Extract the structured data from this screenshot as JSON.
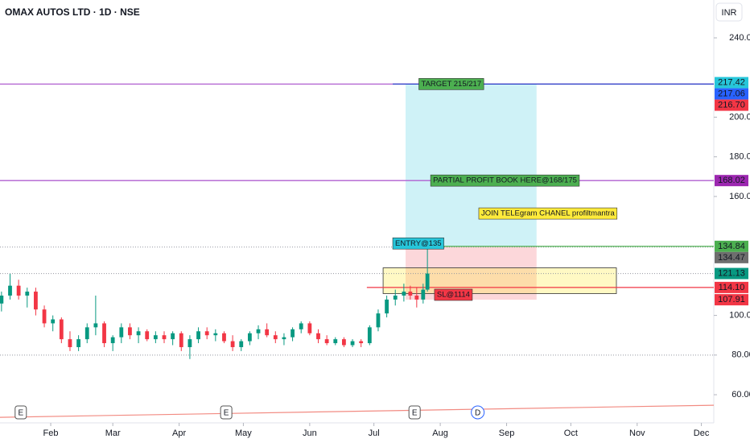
{
  "chart_data": {
    "type": "candlestick",
    "title": "OMAX AUTOS LTD · 1D · NSE",
    "currency": "INR",
    "up_color": "#089981",
    "down_color": "#f23645",
    "xlim": [
      8.3,
      341.8
    ],
    "ylim": [
      45.8,
      259.1
    ],
    "xticks": [
      {
        "value": 32,
        "label": "Feb"
      },
      {
        "value": 61,
        "label": "Mar"
      },
      {
        "value": 92,
        "label": "Apr"
      },
      {
        "value": 122,
        "label": "May"
      },
      {
        "value": 153,
        "label": "Jun"
      },
      {
        "value": 183,
        "label": "Jul"
      },
      {
        "value": 214,
        "label": "Aug"
      },
      {
        "value": 245,
        "label": "Sep"
      },
      {
        "value": 275,
        "label": "Oct"
      },
      {
        "value": 306,
        "label": "Nov"
      },
      {
        "value": 336,
        "label": "Dec"
      }
    ],
    "yticks": [
      {
        "value": 60,
        "label": "60.00"
      },
      {
        "value": 80,
        "label": "80.00"
      },
      {
        "value": 100,
        "label": "100.00"
      },
      {
        "value": 160,
        "label": "160.00"
      },
      {
        "value": 180,
        "label": "180.00"
      },
      {
        "value": 200,
        "label": "200.00"
      },
      {
        "value": 240,
        "label": "240.00"
      }
    ],
    "x": [
      9,
      13,
      17,
      21,
      25,
      29,
      33,
      37,
      41,
      45,
      49,
      53,
      57,
      61,
      65,
      69,
      73,
      77,
      81,
      85,
      89,
      93,
      97,
      101,
      105,
      109,
      113,
      117,
      121,
      125,
      129,
      133,
      137,
      141,
      145,
      149,
      153,
      157,
      161,
      165,
      169,
      173,
      177,
      181,
      185,
      189,
      193,
      197,
      200,
      203,
      206,
      208
    ],
    "open": [
      106,
      110,
      115,
      110,
      112,
      103,
      96,
      98,
      88,
      84,
      88,
      94,
      96,
      86,
      89,
      94,
      90,
      92,
      88,
      90,
      88,
      91,
      84,
      88,
      92,
      90,
      91,
      87,
      84,
      87,
      91,
      93,
      90,
      88,
      89,
      93,
      96,
      91,
      88,
      86,
      88,
      85,
      87,
      86,
      94,
      101,
      108,
      110,
      112,
      110,
      108,
      113
    ],
    "high": [
      112,
      121,
      118,
      114,
      114,
      105,
      100,
      99,
      92,
      90,
      96,
      110,
      97,
      90,
      96,
      96,
      94,
      93,
      92,
      92,
      92,
      92,
      90,
      94,
      94,
      93,
      92,
      90,
      88,
      92,
      95,
      96,
      92,
      91,
      94,
      97,
      97,
      93,
      90,
      89,
      89,
      88,
      88,
      95,
      103,
      110,
      113,
      116,
      115,
      114,
      116,
      135
    ],
    "low": [
      102,
      108,
      108,
      104,
      100,
      94,
      92,
      86,
      82,
      82,
      86,
      90,
      84,
      82,
      86,
      88,
      86,
      87,
      86,
      86,
      85,
      82,
      78,
      86,
      88,
      87,
      86,
      82,
      82,
      85,
      88,
      89,
      86,
      85,
      87,
      91,
      90,
      86,
      85,
      85,
      84,
      84,
      84,
      85,
      92,
      99,
      105,
      107,
      108,
      104,
      106,
      112
    ],
    "close": [
      110,
      115,
      110,
      112,
      103,
      96,
      98,
      88,
      84,
      88,
      94,
      96,
      86,
      89,
      94,
      90,
      92,
      88,
      90,
      88,
      91,
      84,
      88,
      92,
      90,
      91,
      87,
      84,
      87,
      91,
      93,
      90,
      88,
      89,
      93,
      96,
      91,
      88,
      86,
      88,
      85,
      87,
      86,
      94,
      101,
      108,
      110,
      112,
      110,
      108,
      113,
      121.13
    ],
    "hlines": [
      {
        "value": 216.7,
        "color": "#b05fd0",
        "x": [
          8.3,
          341.8
        ]
      },
      {
        "value": 216.7,
        "color": "#2a3fc8",
        "x": [
          191.8,
          341.8
        ]
      },
      {
        "value": 168.02,
        "color": "#b05fd0",
        "x": [
          8.3,
          341.8
        ]
      },
      {
        "value": 134.84,
        "color": "#4caf50",
        "x": [
          191.8,
          341.8
        ]
      },
      {
        "value": 114.1,
        "color": "#f23645",
        "x": [
          179.7,
          341.8
        ]
      }
    ],
    "dotted_lines": [
      134.47,
      121.13,
      80
    ],
    "zones": [
      {
        "x": [
          197.8,
          259
        ],
        "y": [
          134.84,
          216.7
        ],
        "color": "rgba(38,198,218,0.22)"
      },
      {
        "x": [
          197.8,
          259
        ],
        "y": [
          107.91,
          134.84
        ],
        "color": "rgba(242,54,69,0.2)"
      },
      {
        "x": [
          187.3,
          296.3
        ],
        "y": [
          111,
          124
        ],
        "color": "rgba(255,235,59,0.3)"
      }
    ],
    "trendline": {
      "x": [
        8.3,
        341.8
      ],
      "y": [
        48.6,
        54.7
      ],
      "color": "#f28b82"
    },
    "notes": [
      {
        "text": "TARGET 215/217",
        "x": 204,
        "y": 216.7,
        "bg": "#4caf50"
      },
      {
        "text": "PARTIAL PROFIT BOOK HERE@168/175",
        "x": 209.5,
        "y": 168.02,
        "bg": "#4caf50"
      },
      {
        "text": "JOIN TELEgram CHANEL profiltmantra",
        "x": 232,
        "y": 151.4,
        "bg": "#ffeb3b"
      },
      {
        "text": "ENTRY@135",
        "x": 191.8,
        "y": 136.3,
        "bg": "#26c6da"
      },
      {
        "text": "SL@1114",
        "x": 211.3,
        "y": 110.4,
        "bg": "#f23645"
      }
    ],
    "price_labels": [
      {
        "value": 217.42,
        "label": "217.42",
        "color": "#26c6da"
      },
      {
        "value": 217.06,
        "label": "217.06",
        "color": "#2962ff"
      },
      {
        "value": 216.7,
        "label": "216.70",
        "color": "#f23645"
      },
      {
        "value": 168.02,
        "label": "168.02",
        "color": "#9c27b0"
      },
      {
        "value": 134.84,
        "label": "134.84",
        "color": "#4caf50"
      },
      {
        "value": 134.47,
        "label": "134.47",
        "color": "#6e6e6e"
      },
      {
        "value": 121.13,
        "label": "121.13",
        "color": "#089981"
      },
      {
        "value": 114.1,
        "label": "114.10",
        "color": "#f23645"
      },
      {
        "value": 107.91,
        "label": "107.91",
        "color": "#f23645"
      }
    ],
    "events": [
      {
        "x": 18,
        "label": "E"
      },
      {
        "x": 114,
        "label": "E"
      },
      {
        "x": 202,
        "label": "E"
      },
      {
        "x": 231.5,
        "label": "D"
      }
    ]
  }
}
